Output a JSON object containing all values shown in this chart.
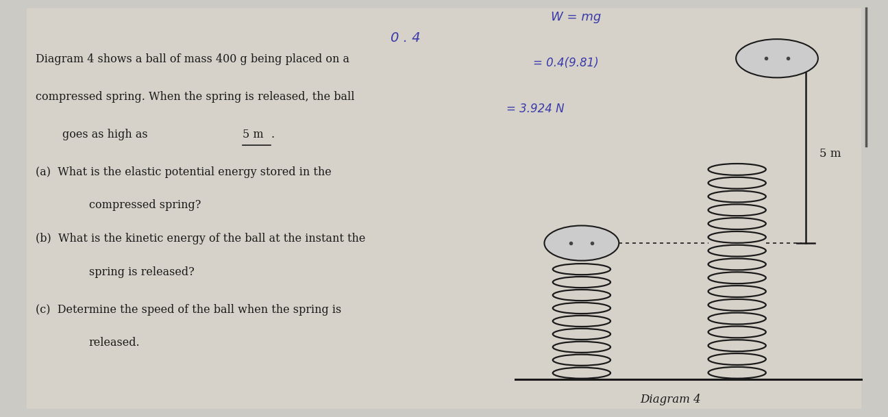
{
  "bg_color": "#b8b4ae",
  "paper_color": "#d8d4cc",
  "handwritten_top": "0 . 4",
  "handwritten_eq1": "W = mg",
  "handwritten_eq2": "= 0.4(9.81)",
  "handwritten_eq3": "= 3.924 N",
  "diagram_label": "Diagram 4",
  "height_label": "5 m",
  "spring_color": "#1a1a1a",
  "text_color": "#1a1a1a",
  "handwrite_color": "#3a3aaa",
  "main_line1": "Diagram 4 shows a ball of mass 400 g being placed on a",
  "main_line2": "compressed spring. When the spring is released, the ball",
  "main_line3_pre": "goes as high as ",
  "main_line3_5m": "5 m",
  "main_line3_post": ".",
  "qa": [
    [
      "(a)",
      "What is the elastic potential energy stored in the"
    ],
    [
      "",
      "compressed spring?"
    ],
    [
      "(b)",
      "What is the kinetic energy of the ball at the instant the"
    ],
    [
      "",
      "spring is released?"
    ],
    [
      "(c)",
      "Determine the speed of the ball when the spring is"
    ],
    [
      "",
      "released."
    ]
  ]
}
